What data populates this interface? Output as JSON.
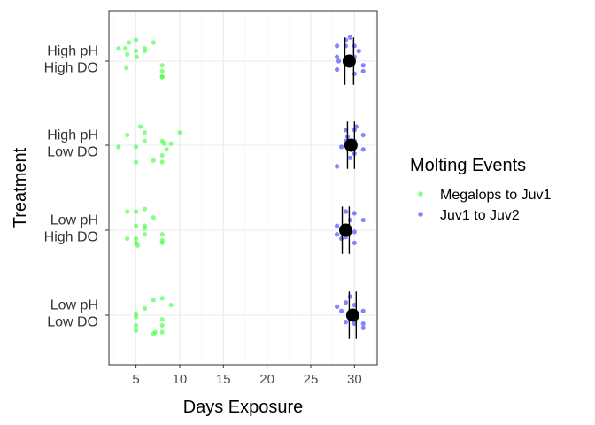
{
  "chart_data": {
    "type": "scatter",
    "xlabel": "Days Exposure",
    "ylabel": "Treatment",
    "xlim": [
      1.9,
      32.6
    ],
    "x_ticks": [
      5,
      10,
      15,
      20,
      25,
      30
    ],
    "grid": true,
    "legend_position": "right",
    "colors": {
      "series_1": "#33ff33",
      "series_2": "#3333ff",
      "summary": "#000000"
    },
    "categories": [
      {
        "lines": [
          "High pH",
          "High DO"
        ]
      },
      {
        "lines": [
          "High pH",
          "Low DO"
        ]
      },
      {
        "lines": [
          "Low pH",
          "High DO"
        ]
      },
      {
        "lines": [
          "Low pH",
          "Low DO"
        ]
      }
    ],
    "legend": {
      "title": "Molting Events"
    },
    "series": [
      {
        "name": "Megalops to Juv1",
        "points": [
          [
            3,
            0.15
          ],
          [
            3.8,
            0.15
          ],
          [
            4.2,
            0.22
          ],
          [
            5,
            0.25
          ],
          [
            5,
            0.12
          ],
          [
            5.1,
            0.05
          ],
          [
            6,
            0.15
          ],
          [
            6,
            0.12
          ],
          [
            7,
            0.22
          ],
          [
            4,
            0.08
          ],
          [
            8,
            -0.05
          ],
          [
            8,
            -0.12
          ],
          [
            3.9,
            -0.08
          ],
          [
            8,
            -0.18
          ],
          [
            8,
            -0.19
          ],
          [
            10,
            0.15
          ],
          [
            8,
            0.05
          ],
          [
            8.2,
            0.02
          ],
          [
            9,
            0.02
          ],
          [
            6,
            0.05
          ],
          [
            4,
            0.12
          ],
          [
            5.5,
            0.22
          ],
          [
            7,
            -0.18
          ],
          [
            8,
            -0.12
          ],
          [
            8,
            -0.2
          ],
          [
            5,
            -0.2
          ],
          [
            3,
            -0.02
          ],
          [
            5,
            -0.02
          ],
          [
            8.5,
            -0.05
          ],
          [
            6,
            0.15
          ],
          [
            4,
            0.22
          ],
          [
            5,
            0.22
          ],
          [
            7,
            0.15
          ],
          [
            6,
            0.25
          ],
          [
            6,
            0.05
          ],
          [
            5,
            0.05
          ],
          [
            6,
            0.02
          ],
          [
            4,
            -0.1
          ],
          [
            5,
            -0.1
          ],
          [
            8,
            -0.05
          ],
          [
            8,
            -0.12
          ],
          [
            6,
            -0.05
          ],
          [
            5,
            -0.15
          ],
          [
            5.2,
            -0.18
          ],
          [
            8,
            -0.15
          ],
          [
            7,
            0.18
          ],
          [
            8,
            0.2
          ],
          [
            9,
            0.12
          ],
          [
            6,
            0.08
          ],
          [
            5,
            0.02
          ],
          [
            5,
            -0.02
          ],
          [
            8,
            -0.05
          ],
          [
            5,
            -0.12
          ],
          [
            5,
            -0.18
          ],
          [
            7,
            -0.22
          ],
          [
            7.2,
            -0.2
          ],
          [
            8,
            -0.2
          ],
          [
            8,
            -0.12
          ]
        ]
      },
      {
        "name": "Juv1 to Juv2",
        "points": [
          [
            28,
            0.18
          ],
          [
            29,
            0.18
          ],
          [
            30,
            0.18
          ],
          [
            29,
            0.25
          ],
          [
            28,
            0.05
          ],
          [
            28.2,
            0.0
          ],
          [
            29,
            0.02
          ],
          [
            30,
            0.05
          ],
          [
            31,
            -0.05
          ],
          [
            31,
            -0.12
          ],
          [
            30,
            -0.15
          ],
          [
            28,
            -0.1
          ],
          [
            30.5,
            0.12
          ],
          [
            29.5,
            0.28
          ],
          [
            29,
            0.18
          ],
          [
            30,
            0.18
          ],
          [
            31,
            0.12
          ],
          [
            30,
            0.05
          ],
          [
            29,
            0.05
          ],
          [
            28.5,
            -0.02
          ],
          [
            30,
            -0.1
          ],
          [
            29.5,
            -0.15
          ],
          [
            28,
            -0.25
          ],
          [
            31,
            -0.05
          ],
          [
            30.2,
            0.22
          ],
          [
            29.2,
            0.1
          ],
          [
            29,
            0.22
          ],
          [
            30,
            0.2
          ],
          [
            31,
            0.12
          ],
          [
            28,
            0.05
          ],
          [
            28.5,
            0.02
          ],
          [
            29,
            0.0
          ],
          [
            30,
            -0.02
          ],
          [
            28,
            -0.05
          ],
          [
            29,
            -0.08
          ],
          [
            28.5,
            -0.1
          ],
          [
            30,
            -0.15
          ],
          [
            29.5,
            0.12
          ],
          [
            28,
            0.1
          ],
          [
            29,
            0.15
          ],
          [
            30,
            0.12
          ],
          [
            31,
            0.05
          ],
          [
            30,
            -0.05
          ],
          [
            29,
            -0.08
          ],
          [
            30,
            -0.1
          ],
          [
            31,
            -0.1
          ],
          [
            31,
            -0.15
          ],
          [
            29.5,
            0.22
          ],
          [
            28.5,
            0.05
          ]
        ]
      }
    ],
    "summary": [
      {
        "category_index": 0,
        "mean": 29.4,
        "lo": 28.9,
        "hi": 29.9,
        "ci_half_height": 0.28
      },
      {
        "category_index": 1,
        "mean": 29.6,
        "lo": 29.2,
        "hi": 30.0,
        "ci_half_height": 0.28
      },
      {
        "category_index": 2,
        "mean": 29.0,
        "lo": 28.6,
        "hi": 29.4,
        "ci_half_height": 0.28
      },
      {
        "category_index": 3,
        "mean": 29.8,
        "lo": 29.4,
        "hi": 30.2,
        "ci_half_height": 0.28
      }
    ]
  }
}
